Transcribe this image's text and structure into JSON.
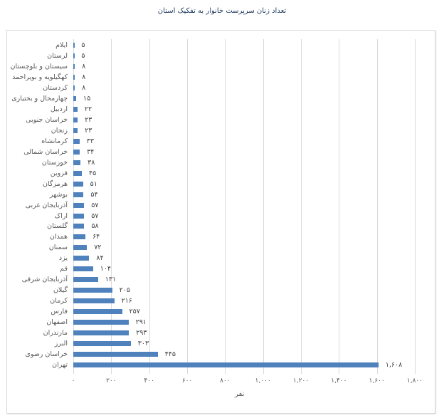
{
  "chart_data": {
    "type": "bar",
    "orientation": "horizontal",
    "title": "تعداد زنان سرپرست خانوار به تفکیک استان",
    "xlabel": "نفر",
    "ylabel": "",
    "xlim": [
      0,
      1800
    ],
    "grid": true,
    "legend": null,
    "bar_color": "#4f81bd",
    "x_ticks": [
      0,
      200,
      400,
      600,
      800,
      1000,
      1200,
      1400,
      1600,
      1800
    ],
    "x_tick_labels": [
      "۰",
      "۲۰۰",
      "۴۰۰",
      "۶۰۰",
      "۸۰۰",
      "۱,۰۰۰",
      "۱,۲۰۰",
      "۱,۴۰۰",
      "۱,۶۰۰",
      "۱,۸۰۰"
    ],
    "categories": [
      "ایلام",
      "لرستان",
      "سیستان و بلوچستان",
      "کهگیلویه و بویراحمد",
      "کردستان",
      "چهارمحال و بختیاری",
      "اردبیل",
      "خراسان جنوبی",
      "زنجان",
      "کرمانشاه",
      "خراسان شمالی",
      "خوزستان",
      "قزوین",
      "هرمزگان",
      "بوشهر",
      "آذربایجان غربی",
      "اراک",
      "گلستان",
      "همدان",
      "سمنان",
      "یزد",
      "قم",
      "آذربایجان شرقی",
      "گیلان",
      "کرمان",
      "فارس",
      "اصفهان",
      "مازندران",
      "البرز",
      "خراسان رضوی",
      "تهران"
    ],
    "values": [
      5,
      5,
      8,
      8,
      8,
      15,
      22,
      23,
      23,
      33,
      34,
      38,
      45,
      51,
      54,
      57,
      57,
      58,
      64,
      72,
      84,
      104,
      131,
      205,
      216,
      257,
      291,
      293,
      303,
      445,
      1608
    ],
    "value_labels": [
      "۵",
      "۵",
      "۸",
      "۸",
      "۸",
      "۱۵",
      "۲۲",
      "۲۳",
      "۲۳",
      "۳۳",
      "۳۴",
      "۳۸",
      "۴۵",
      "۵۱",
      "۵۴",
      "۵۷",
      "۵۷",
      "۵۸",
      "۶۴",
      "۷۲",
      "۸۴",
      "۱۰۴",
      "۱۳۱",
      "۲۰۵",
      "۲۱۶",
      "۲۵۷",
      "۲۹۱",
      "۲۹۳",
      "۳۰۳",
      "۴۴۵",
      "۱,۶۰۸"
    ]
  }
}
